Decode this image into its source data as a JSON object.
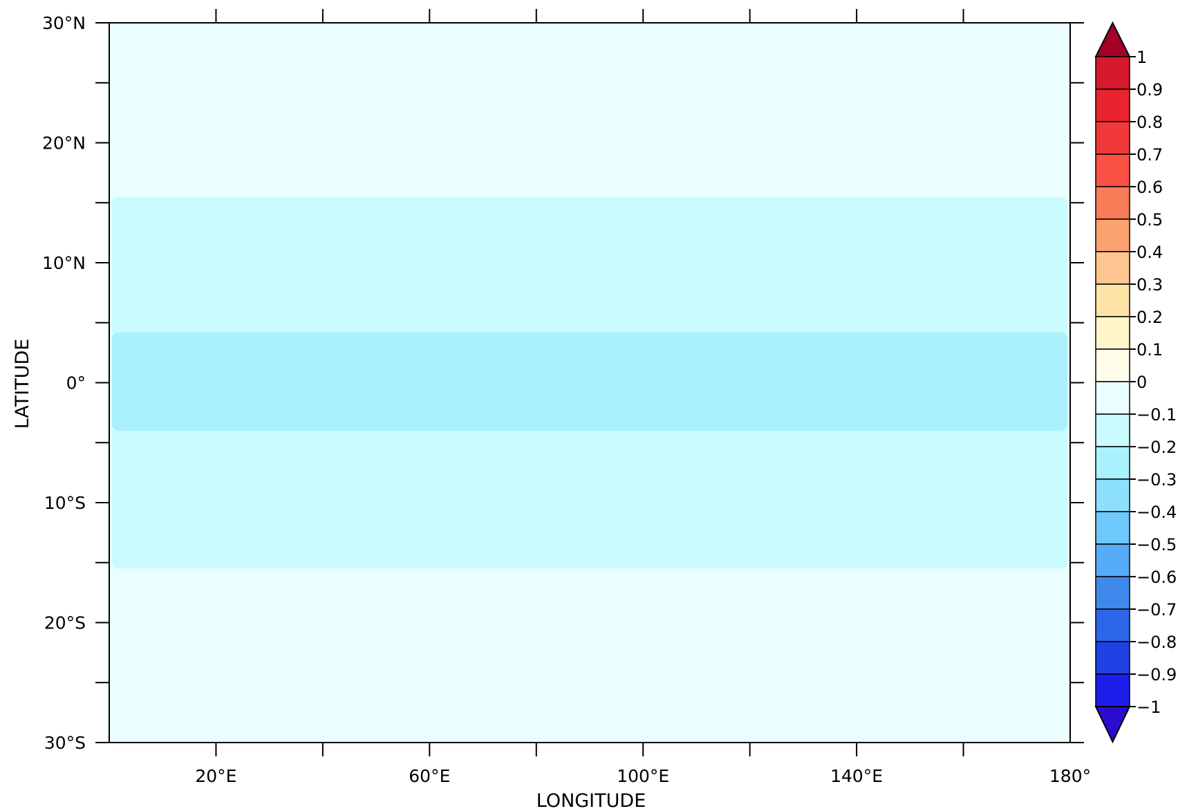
{
  "chart_data": {
    "type": "heatmap",
    "title": "",
    "xlabel": "LONGITUDE",
    "ylabel": "LATITUDE",
    "xlim": [
      0,
      180
    ],
    "ylim": [
      -30,
      30
    ],
    "x_ticks": [
      {
        "value": 20,
        "label": "20°E"
      },
      {
        "value": 60,
        "label": "60°E"
      },
      {
        "value": 100,
        "label": "100°E"
      },
      {
        "value": 140,
        "label": "140°E"
      },
      {
        "value": 180,
        "label": "180°"
      }
    ],
    "x_minor_ticks": [
      20,
      40,
      60,
      80,
      100,
      120,
      140,
      160
    ],
    "y_ticks": [
      {
        "value": 30,
        "label": "30°N"
      },
      {
        "value": 20,
        "label": "20°N"
      },
      {
        "value": 10,
        "label": "10°N"
      },
      {
        "value": 0,
        "label": "0°"
      },
      {
        "value": -10,
        "label": "10°S"
      },
      {
        "value": -20,
        "label": "20°S"
      },
      {
        "value": -30,
        "label": "30°S"
      }
    ],
    "y_minor_ticks": [
      25,
      15,
      5,
      -5,
      -15,
      -25
    ],
    "background_color": "#eafeff",
    "bands": [
      {
        "lat_min": -15.5,
        "lat_max": 15.5,
        "lon_min": 0.5,
        "lon_max": 179.5,
        "value_range": [
          -0.2,
          -0.1
        ],
        "color": "#c9fbff"
      },
      {
        "lat_min": -4.0,
        "lat_max": 4.2,
        "lon_min": 0.5,
        "lon_max": 179.5,
        "value_range": [
          -0.3,
          -0.2
        ],
        "color": "#a8f1fd"
      }
    ],
    "colorbar": {
      "levels": [
        1,
        0.9,
        0.8,
        0.7,
        0.6,
        0.5,
        0.4,
        0.3,
        0.2,
        0.1,
        0,
        -0.1,
        -0.2,
        -0.3,
        -0.4,
        -0.5,
        -0.6,
        -0.7,
        -0.8,
        -0.9,
        -1
      ],
      "labels": [
        "1",
        "0.9",
        "0.8",
        "0.7",
        "0.6",
        "0.5",
        "0.4",
        "0.3",
        "0.2",
        "0.1",
        "0",
        "−0.1",
        "−0.2",
        "−0.3",
        "−0.4",
        "−0.5",
        "−0.6",
        "−0.7",
        "−0.8",
        "−0.9",
        "−1"
      ],
      "top_color": "#a50026",
      "segment_colors": [
        "#d7192e",
        "#e8242f",
        "#f2393a",
        "#fb5145",
        "#f97c58",
        "#fba36f",
        "#fdc58f",
        "#fde3a6",
        "#fff5c8",
        "#fffde9",
        "#eafeff",
        "#c9fbff",
        "#a8f1fd",
        "#8de0fc",
        "#6ec8fb",
        "#55acf8",
        "#3f89ed",
        "#2d66e8",
        "#2041e4",
        "#1c1eea"
      ],
      "bottom_color": "#2a0cce"
    }
  }
}
